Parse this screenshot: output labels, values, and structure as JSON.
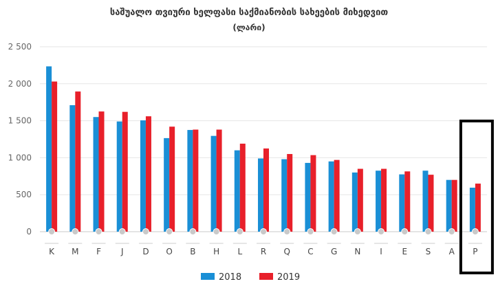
{
  "chart_data": {
    "type": "bar",
    "title": "საშუალო თვიური ხელფასი საქმიანობის სახეების მიხედვით",
    "subtitle": "(ლარი)",
    "xlabel": "",
    "ylabel": "",
    "categories": [
      "K",
      "M",
      "F",
      "J",
      "D",
      "O",
      "B",
      "H",
      "L",
      "R",
      "Q",
      "C",
      "G",
      "N",
      "I",
      "E",
      "S",
      "A",
      "P"
    ],
    "series": [
      {
        "name": "2018",
        "color": "#1a8fd6",
        "values": [
          2235,
          1710,
          1550,
          1490,
          1505,
          1265,
          1375,
          1295,
          1100,
          990,
          980,
          930,
          950,
          800,
          825,
          775,
          825,
          700,
          595
        ]
      },
      {
        "name": "2019",
        "color": "#e8202a",
        "values": [
          2030,
          1895,
          1625,
          1620,
          1560,
          1420,
          1380,
          1380,
          1190,
          1125,
          1050,
          1035,
          970,
          850,
          850,
          815,
          770,
          700,
          650
        ]
      }
    ],
    "ylim": [
      0,
      2500
    ],
    "yticks": [
      0,
      500,
      1000,
      1500,
      2000,
      2500
    ],
    "ytick_labels": [
      "0",
      "500",
      "1 000",
      "1 500",
      "2 000",
      "2 500"
    ],
    "grid": true,
    "legend": "bottom-center",
    "highlight": {
      "category": "P",
      "style": "black-box"
    }
  }
}
